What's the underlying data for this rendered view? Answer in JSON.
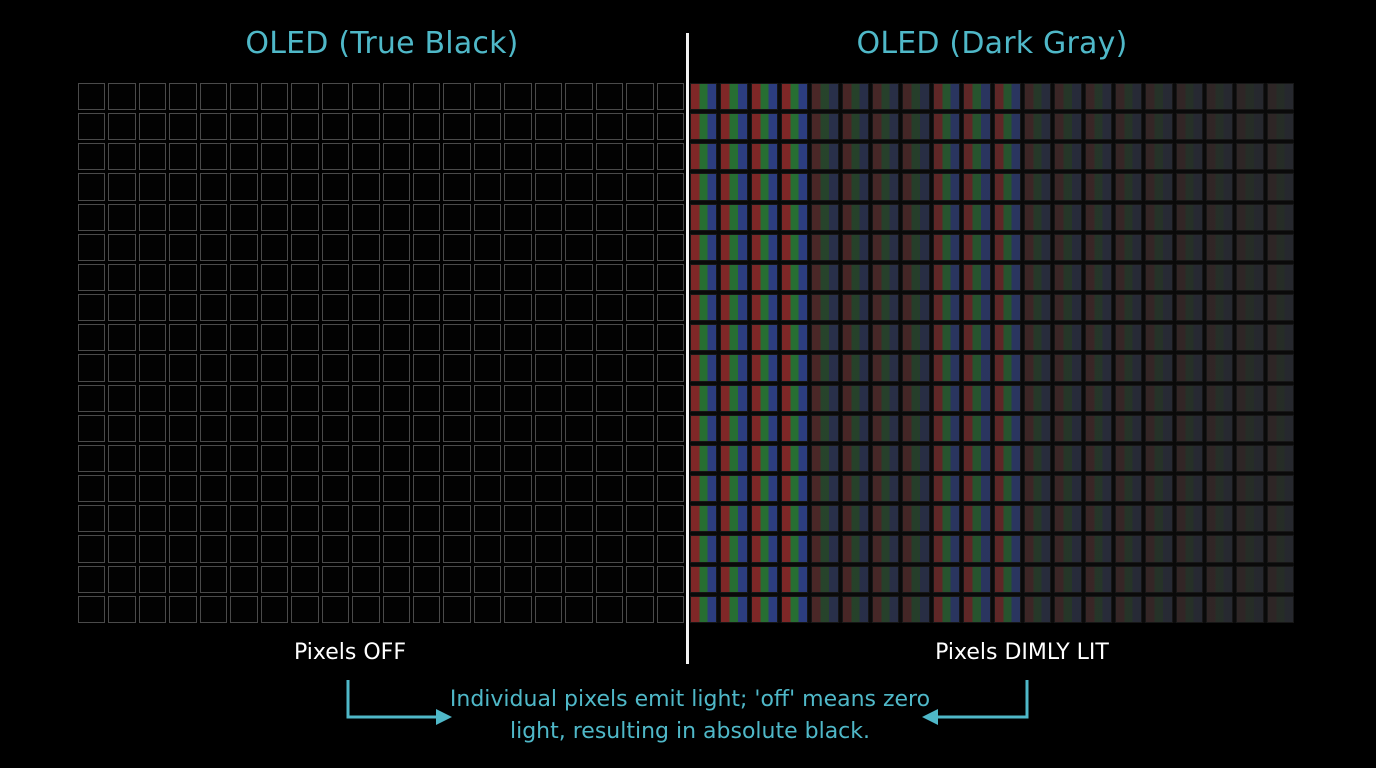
{
  "left_panel": {
    "title": "OLED (True Black)",
    "caption": "Pixels OFF"
  },
  "right_panel": {
    "title": "OLED (Dark Gray)",
    "caption": "Pixels DIMLY LIT"
  },
  "note": "Individual pixels emit light; 'off' means zero light, resulting in absolute black.",
  "grid": {
    "columns": 20,
    "rows": 18
  },
  "colors": {
    "accent": "#4fb8c8",
    "background": "#000000",
    "divider": "#f2f2f2",
    "text": "#ffffff"
  }
}
